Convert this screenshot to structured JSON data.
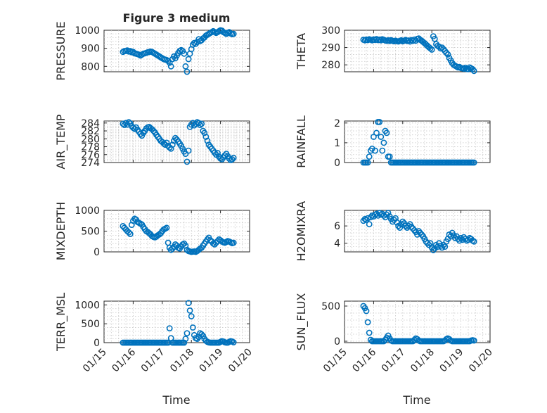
{
  "figure": {
    "title": "Figure 3 medium",
    "accent_color": "#0072bd",
    "x_axis": {
      "label": "Time",
      "range": [
        "01/15",
        "01/20"
      ],
      "ticks": [
        "01/15",
        "01/16",
        "01/17",
        "01/18",
        "01/19",
        "01/20"
      ]
    }
  },
  "chart_data": [
    {
      "type": "scatter",
      "ylabel": "PRESSURE",
      "ylim": [
        770,
        1000
      ],
      "yticks": [
        800,
        900,
        1000
      ],
      "grid": true,
      "x": [
        0.65,
        0.7,
        0.75,
        0.8,
        0.85,
        0.9,
        0.95,
        1.0,
        1.05,
        1.1,
        1.15,
        1.2,
        1.25,
        1.3,
        1.35,
        1.4,
        1.45,
        1.5,
        1.55,
        1.6,
        1.65,
        1.7,
        1.75,
        1.8,
        1.85,
        1.9,
        1.95,
        2.0,
        2.05,
        2.1,
        2.15,
        2.2,
        2.25,
        2.3,
        2.35,
        2.4,
        2.45,
        2.5,
        2.55,
        2.6,
        2.65,
        2.7,
        2.75,
        2.8,
        2.85,
        2.9,
        2.95,
        3.0,
        3.05,
        3.1,
        3.15,
        3.2,
        3.25,
        3.3,
        3.35,
        3.4,
        3.45,
        3.5,
        3.55,
        3.6,
        3.65,
        3.7,
        3.75,
        3.8,
        3.85,
        3.9,
        3.95,
        4.0,
        4.05,
        4.1,
        4.15,
        4.2,
        4.25,
        4.3,
        4.35,
        4.4,
        4.45
      ],
      "y": [
        880,
        885,
        885,
        888,
        882,
        885,
        878,
        880,
        872,
        870,
        868,
        865,
        860,
        865,
        870,
        872,
        875,
        878,
        880,
        882,
        880,
        875,
        870,
        865,
        860,
        855,
        850,
        845,
        840,
        838,
        835,
        830,
        820,
        800,
        840,
        855,
        845,
        860,
        875,
        885,
        890,
        885,
        870,
        800,
        770,
        840,
        870,
        895,
        920,
        930,
        925,
        935,
        950,
        940,
        945,
        955,
        960,
        970,
        975,
        980,
        985,
        990,
        995,
        990,
        985,
        990,
        995,
        1000,
        998,
        990,
        985,
        980,
        985,
        990,
        982,
        978,
        980
      ]
    },
    {
      "type": "scatter",
      "ylabel": "THETA",
      "ylim": [
        276,
        300
      ],
      "yticks": [
        280,
        290,
        300
      ],
      "grid": true,
      "x": [
        0.65,
        0.7,
        0.75,
        0.8,
        0.85,
        0.9,
        0.95,
        1.0,
        1.05,
        1.1,
        1.15,
        1.2,
        1.25,
        1.3,
        1.35,
        1.4,
        1.45,
        1.5,
        1.55,
        1.6,
        1.65,
        1.7,
        1.75,
        1.8,
        1.85,
        1.9,
        1.95,
        2.0,
        2.05,
        2.1,
        2.15,
        2.2,
        2.25,
        2.3,
        2.35,
        2.4,
        2.45,
        2.5,
        2.55,
        2.6,
        2.65,
        2.7,
        2.75,
        2.8,
        2.85,
        2.9,
        2.95,
        3.0,
        3.05,
        3.1,
        3.15,
        3.2,
        3.25,
        3.3,
        3.35,
        3.4,
        3.45,
        3.5,
        3.55,
        3.6,
        3.65,
        3.7,
        3.75,
        3.8,
        3.85,
        3.9,
        3.95,
        4.0,
        4.05,
        4.1,
        4.15,
        4.2,
        4.25,
        4.3,
        4.35,
        4.4,
        4.45
      ],
      "y": [
        294.5,
        294.2,
        294.6,
        294.3,
        294.8,
        294.5,
        294.2,
        294.7,
        294.4,
        294.9,
        294.3,
        294.6,
        294.2,
        294.8,
        294.5,
        294.1,
        293.9,
        294.2,
        293.8,
        294.3,
        293.9,
        293.6,
        294.0,
        293.7,
        293.5,
        293.9,
        294.2,
        293.6,
        294.0,
        294.4,
        293.8,
        294.1,
        293.5,
        294.3,
        293.9,
        294.6,
        294.0,
        295.0,
        295.3,
        294.5,
        294.0,
        293.2,
        292.5,
        291.8,
        291.0,
        290.2,
        289.5,
        288.8,
        296.5,
        295.0,
        292.0,
        291.0,
        290.5,
        289.5,
        290.0,
        289.0,
        288.0,
        287.0,
        286.0,
        284.0,
        282.5,
        281.0,
        280.0,
        279.5,
        279.0,
        278.5,
        278.8,
        278.2,
        278.0,
        277.8,
        278.3,
        277.6,
        277.5,
        278.5,
        278.0,
        277.5,
        276.5
      ]
    },
    {
      "type": "scatter",
      "ylabel": "AIR_TEMP",
      "ylim": [
        274,
        284.5
      ],
      "yticks": [
        274,
        276,
        278,
        280,
        282,
        284
      ],
      "grid": true,
      "x": [
        0.65,
        0.7,
        0.75,
        0.8,
        0.85,
        0.9,
        0.95,
        1.0,
        1.05,
        1.1,
        1.15,
        1.2,
        1.25,
        1.3,
        1.35,
        1.4,
        1.45,
        1.5,
        1.55,
        1.6,
        1.65,
        1.7,
        1.75,
        1.8,
        1.85,
        1.9,
        1.95,
        2.0,
        2.05,
        2.1,
        2.15,
        2.2,
        2.25,
        2.3,
        2.35,
        2.4,
        2.45,
        2.5,
        2.55,
        2.6,
        2.65,
        2.7,
        2.75,
        2.8,
        2.85,
        2.9,
        2.95,
        3.0,
        3.05,
        3.1,
        3.15,
        3.2,
        3.25,
        3.3,
        3.35,
        3.4,
        3.45,
        3.5,
        3.55,
        3.6,
        3.65,
        3.7,
        3.75,
        3.8,
        3.85,
        3.9,
        3.95,
        4.0,
        4.05,
        4.1,
        4.15,
        4.2,
        4.25,
        4.3,
        4.35,
        4.4,
        4.45
      ],
      "y": [
        283.8,
        283.5,
        284.0,
        283.6,
        284.2,
        283.9,
        283.2,
        282.8,
        282.5,
        282.9,
        282.3,
        281.8,
        281.2,
        280.8,
        281.5,
        282.0,
        282.6,
        282.9,
        283.0,
        282.7,
        282.4,
        282.0,
        281.6,
        281.0,
        280.5,
        280.0,
        279.5,
        279.2,
        278.8,
        278.5,
        279.0,
        278.2,
        277.8,
        277.5,
        278.5,
        279.5,
        280.2,
        279.8,
        279.3,
        278.8,
        278.2,
        277.5,
        276.8,
        276.2,
        274.2,
        277.0,
        283.0,
        283.6,
        284.0,
        283.4,
        283.8,
        284.2,
        284.0,
        283.5,
        283.8,
        282.0,
        281.5,
        280.5,
        279.5,
        278.5,
        278.0,
        277.5,
        277.0,
        276.5,
        276.0,
        276.4,
        275.5,
        275.0,
        274.8,
        275.3,
        275.8,
        276.2,
        275.6,
        275.0,
        274.6,
        274.8,
        275.2
      ]
    },
    {
      "type": "scatter",
      "ylabel": "RAINFALL",
      "ylim": [
        0,
        2.1
      ],
      "yticks": [
        0,
        1,
        2
      ],
      "grid": true,
      "x": [
        0.65,
        0.7,
        0.75,
        0.8,
        0.85,
        0.9,
        0.95,
        1.0,
        1.05,
        1.1,
        1.15,
        1.2,
        1.25,
        1.3,
        1.35,
        1.4,
        1.45,
        1.5,
        1.55,
        1.6,
        1.65,
        1.7,
        1.75,
        1.8,
        1.85,
        1.9,
        1.95,
        2.0,
        2.05,
        2.1,
        2.15,
        2.2,
        2.25,
        2.3,
        2.35,
        2.4,
        2.45,
        2.5,
        2.55,
        2.6,
        2.65,
        2.7,
        2.75,
        2.8,
        2.85,
        2.9,
        2.95,
        3.0,
        3.05,
        3.1,
        3.15,
        3.2,
        3.25,
        3.3,
        3.35,
        3.4,
        3.45,
        3.5,
        3.55,
        3.6,
        3.65,
        3.7,
        3.75,
        3.8,
        3.85,
        3.9,
        3.95,
        4.0,
        4.05,
        4.1,
        4.15,
        4.2,
        4.25,
        4.3,
        4.35,
        4.4,
        4.45
      ],
      "y": [
        0,
        0,
        0,
        0,
        0.3,
        0.6,
        0.7,
        1.3,
        0.6,
        1.5,
        2.05,
        2.05,
        1.3,
        0.6,
        1.0,
        1.6,
        1.5,
        0.3,
        0.3,
        0,
        0,
        0,
        0,
        0,
        0,
        0,
        0,
        0,
        0,
        0,
        0,
        0,
        0,
        0,
        0,
        0,
        0,
        0,
        0,
        0,
        0,
        0,
        0,
        0,
        0,
        0,
        0,
        0,
        0,
        0,
        0,
        0,
        0,
        0,
        0,
        0,
        0,
        0,
        0,
        0,
        0,
        0,
        0,
        0,
        0,
        0,
        0,
        0,
        0,
        0,
        0,
        0,
        0,
        0,
        0,
        0,
        0
      ]
    },
    {
      "type": "scatter",
      "ylabel": "MIXDEPTH",
      "ylim": [
        0,
        1000
      ],
      "yticks": [
        0,
        500,
        1000
      ],
      "grid": true,
      "x": [
        0.65,
        0.7,
        0.75,
        0.8,
        0.85,
        0.9,
        0.95,
        1.0,
        1.05,
        1.1,
        1.15,
        1.2,
        1.25,
        1.3,
        1.35,
        1.4,
        1.45,
        1.5,
        1.55,
        1.6,
        1.65,
        1.7,
        1.75,
        1.8,
        1.85,
        1.9,
        1.95,
        2.0,
        2.05,
        2.1,
        2.15,
        2.2,
        2.25,
        2.3,
        2.35,
        2.4,
        2.45,
        2.5,
        2.55,
        2.6,
        2.65,
        2.7,
        2.75,
        2.8,
        2.85,
        2.9,
        2.95,
        3.0,
        3.05,
        3.1,
        3.15,
        3.2,
        3.25,
        3.3,
        3.35,
        3.4,
        3.45,
        3.5,
        3.55,
        3.6,
        3.65,
        3.7,
        3.75,
        3.8,
        3.85,
        3.9,
        3.95,
        4.0,
        4.05,
        4.1,
        4.15,
        4.2,
        4.25,
        4.3,
        4.35,
        4.4,
        4.45
      ],
      "y": [
        620,
        580,
        540,
        500,
        470,
        430,
        650,
        750,
        800,
        780,
        720,
        700,
        680,
        660,
        600,
        550,
        500,
        480,
        450,
        420,
        380,
        360,
        350,
        370,
        400,
        420,
        450,
        500,
        540,
        560,
        580,
        220,
        100,
        50,
        80,
        120,
        180,
        150,
        100,
        80,
        130,
        180,
        200,
        150,
        50,
        20,
        10,
        0,
        5,
        10,
        0,
        20,
        50,
        80,
        100,
        150,
        200,
        250,
        300,
        340,
        280,
        250,
        200,
        180,
        220,
        260,
        300,
        280,
        250,
        230,
        220,
        240,
        260,
        250,
        230,
        210,
        220
      ]
    },
    {
      "type": "scatter",
      "ylabel": "H2OMIXRA",
      "ylim": [
        3,
        7.8
      ],
      "yticks": [
        4,
        6
      ],
      "grid": true,
      "x": [
        0.65,
        0.7,
        0.75,
        0.8,
        0.85,
        0.9,
        0.95,
        1.0,
        1.05,
        1.1,
        1.15,
        1.2,
        1.25,
        1.3,
        1.35,
        1.4,
        1.45,
        1.5,
        1.55,
        1.6,
        1.65,
        1.7,
        1.75,
        1.8,
        1.85,
        1.9,
        1.95,
        2.0,
        2.05,
        2.1,
        2.15,
        2.2,
        2.25,
        2.3,
        2.35,
        2.4,
        2.45,
        2.5,
        2.55,
        2.6,
        2.65,
        2.7,
        2.75,
        2.8,
        2.85,
        2.9,
        2.95,
        3.0,
        3.05,
        3.1,
        3.15,
        3.2,
        3.25,
        3.3,
        3.35,
        3.4,
        3.45,
        3.5,
        3.55,
        3.6,
        3.65,
        3.7,
        3.75,
        3.8,
        3.85,
        3.9,
        3.95,
        4.0,
        4.05,
        4.1,
        4.15,
        4.2,
        4.25,
        4.3,
        4.35,
        4.4,
        4.45
      ],
      "y": [
        6.6,
        6.8,
        6.7,
        6.9,
        6.2,
        7.0,
        7.2,
        7.1,
        7.3,
        7.4,
        7.2,
        7.5,
        7.3,
        7.4,
        7.2,
        7.0,
        7.3,
        7.5,
        7.1,
        6.8,
        6.5,
        6.7,
        6.9,
        6.4,
        6.0,
        5.8,
        6.2,
        6.5,
        6.3,
        6.0,
        5.8,
        6.0,
        6.2,
        5.9,
        5.7,
        5.5,
        5.3,
        5.0,
        5.4,
        5.2,
        5.0,
        4.8,
        4.5,
        4.2,
        4.0,
        3.8,
        4.0,
        3.5,
        3.2,
        3.4,
        3.8,
        3.6,
        4.0,
        3.7,
        3.5,
        3.8,
        3.6,
        4.2,
        4.5,
        5.0,
        4.8,
        5.2,
        4.9,
        4.6,
        4.8,
        4.5,
        4.3,
        4.6,
        4.4,
        4.7,
        4.5,
        4.3,
        4.4,
        4.6,
        4.5,
        4.3,
        4.2
      ]
    },
    {
      "type": "scatter",
      "ylabel": "TERR_MSL",
      "ylim": [
        0,
        1100
      ],
      "yticks": [
        0,
        500,
        1000
      ],
      "grid": true,
      "x": [
        0.65,
        0.7,
        0.75,
        0.8,
        0.85,
        0.9,
        0.95,
        1.0,
        1.05,
        1.1,
        1.15,
        1.2,
        1.25,
        1.3,
        1.35,
        1.4,
        1.45,
        1.5,
        1.55,
        1.6,
        1.65,
        1.7,
        1.75,
        1.8,
        1.85,
        1.9,
        1.95,
        2.0,
        2.05,
        2.1,
        2.15,
        2.2,
        2.25,
        2.3,
        2.35,
        2.4,
        2.45,
        2.5,
        2.55,
        2.6,
        2.65,
        2.7,
        2.75,
        2.8,
        2.85,
        2.9,
        2.95,
        3.0,
        3.05,
        3.1,
        3.15,
        3.2,
        3.25,
        3.3,
        3.35,
        3.4,
        3.45,
        3.5,
        3.55,
        3.6,
        3.65,
        3.7,
        3.75,
        3.8,
        3.85,
        3.9,
        3.95,
        4.0,
        4.05,
        4.1,
        4.15,
        4.2,
        4.25,
        4.3,
        4.35,
        4.4,
        4.45
      ],
      "y": [
        0,
        0,
        0,
        0,
        0,
        0,
        0,
        0,
        0,
        0,
        0,
        0,
        0,
        0,
        0,
        0,
        0,
        0,
        0,
        0,
        0,
        0,
        0,
        0,
        0,
        0,
        0,
        0,
        0,
        0,
        0,
        0,
        380,
        120,
        0,
        0,
        0,
        0,
        0,
        0,
        0,
        0,
        0,
        100,
        250,
        1050,
        850,
        700,
        400,
        200,
        120,
        100,
        150,
        250,
        220,
        180,
        100,
        50,
        20,
        5,
        0,
        0,
        0,
        0,
        0,
        0,
        0,
        20,
        40,
        30,
        10,
        0,
        0,
        20,
        40,
        30,
        10
      ]
    },
    {
      "type": "scatter",
      "ylabel": "SUN_FLUX",
      "ylim": [
        -20,
        570
      ],
      "yticks": [
        0,
        500
      ],
      "grid": true,
      "x": [
        0.65,
        0.7,
        0.75,
        0.8,
        0.85,
        0.9,
        0.95,
        1.0,
        1.05,
        1.1,
        1.15,
        1.2,
        1.25,
        1.3,
        1.35,
        1.4,
        1.45,
        1.5,
        1.55,
        1.6,
        1.65,
        1.7,
        1.75,
        1.8,
        1.85,
        1.9,
        1.95,
        2.0,
        2.05,
        2.1,
        2.15,
        2.2,
        2.25,
        2.3,
        2.35,
        2.4,
        2.45,
        2.5,
        2.55,
        2.6,
        2.65,
        2.7,
        2.75,
        2.8,
        2.85,
        2.9,
        2.95,
        3.0,
        3.05,
        3.1,
        3.15,
        3.2,
        3.25,
        3.3,
        3.35,
        3.4,
        3.45,
        3.5,
        3.55,
        3.6,
        3.65,
        3.7,
        3.75,
        3.8,
        3.85,
        3.9,
        3.95,
        4.0,
        4.05,
        4.1,
        4.15,
        4.2,
        4.25,
        4.3,
        4.35,
        4.4,
        4.45
      ],
      "y": [
        500,
        470,
        430,
        270,
        120,
        20,
        0,
        0,
        0,
        0,
        0,
        0,
        0,
        0,
        0,
        20,
        50,
        80,
        40,
        10,
        0,
        0,
        0,
        0,
        0,
        0,
        0,
        0,
        0,
        0,
        0,
        0,
        0,
        0,
        0,
        20,
        40,
        30,
        10,
        0,
        0,
        0,
        0,
        0,
        0,
        0,
        0,
        0,
        0,
        0,
        0,
        0,
        0,
        0,
        0,
        0,
        10,
        30,
        40,
        30,
        10,
        0,
        0,
        0,
        0,
        0,
        0,
        0,
        0,
        0,
        0,
        0,
        0,
        0,
        10,
        15,
        10
      ]
    }
  ]
}
